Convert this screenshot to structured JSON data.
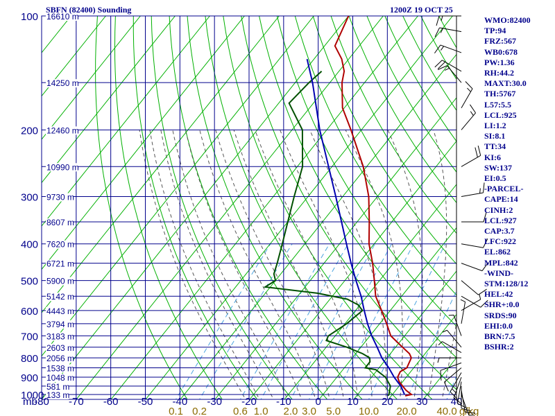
{
  "header": {
    "title": "SBFN (82400) Sounding",
    "timestamp": "1200Z 19 OCT 25"
  },
  "indices": [
    "WMO:82400",
    "TP:94",
    "FRZ:567",
    "WB0:678",
    "PW:1.36",
    "RH:44.2",
    "MAXT:30.0",
    "TH:5767",
    "L57:5.5",
    "LCL:925",
    "LI:1.2",
    "SI:8.1",
    "TT:34",
    "KI:6",
    "SW:137",
    "EI:0.5",
    "-PARCEL-",
    "CAPE:14",
    "CINH:2",
    "LCL:927",
    "CAP:3.7",
    "LFC:922",
    "EL:862",
    "MPL:842",
    "-WIND-",
    "STM:128/12",
    "HEL:42",
    "SHR+:0.0",
    "SRDS:90",
    "EHI:0.0",
    "BRN:7.5",
    "BSHR:2"
  ],
  "colors": {
    "grid": "#00008b",
    "dry_adiabat": "#00b000",
    "moist_adiabat": "#555555",
    "mixing_ratio": "#4aa3df",
    "temperature": "#b00000",
    "dewpoint": "#005000",
    "parcel": "#0000b0",
    "wind": "#000000",
    "mixing_label": "#8b6b00"
  },
  "chart_data": {
    "type": "line",
    "title": "SBFN (82400) Sounding",
    "xlabel": "",
    "ylabel": "mb",
    "pressure_levels": [
      100,
      200,
      300,
      400,
      500,
      600,
      700,
      800,
      900,
      1000
    ],
    "pressure_ticks": [
      "100",
      "200",
      "300",
      "400",
      "500",
      "600",
      "700",
      "800",
      "900",
      "1000"
    ],
    "ylim": [
      100,
      1030
    ],
    "y_scale": "log",
    "temperature_ticks": [
      -80,
      -70,
      -60,
      -50,
      -40,
      -30,
      -20,
      -10,
      0,
      10,
      20,
      30,
      40
    ],
    "temperature_tick_labels": [
      "-80",
      "-70",
      "-60",
      "-50",
      "-40",
      "-30",
      "-20",
      "-10",
      "0",
      "10",
      "20",
      "30",
      "40"
    ],
    "mixing_ratio_labels": [
      "0.1",
      "0.2",
      "0.6",
      "1.0",
      "2.0",
      "3.0",
      "5.0",
      "10.0",
      "20.0",
      "40.0"
    ],
    "mixing_ratio_unit": "g/kg",
    "xlim": [
      -80,
      40
    ],
    "grid": true,
    "heights": [
      {
        "p": 100,
        "label": "16610 m"
      },
      {
        "p": 150,
        "label": "14250 m"
      },
      {
        "p": 200,
        "label": "12460 m"
      },
      {
        "p": 250,
        "label": "10990 m"
      },
      {
        "p": 300,
        "label": "9730 m"
      },
      {
        "p": 350,
        "label": "8607 m"
      },
      {
        "p": 400,
        "label": "7620 m"
      },
      {
        "p": 450,
        "label": "6721 m"
      },
      {
        "p": 500,
        "label": "5900 m"
      },
      {
        "p": 550,
        "label": "5142 m"
      },
      {
        "p": 600,
        "label": "4443 m"
      },
      {
        "p": 650,
        "label": "3794 m"
      },
      {
        "p": 700,
        "label": "3183 m"
      },
      {
        "p": 750,
        "label": "2603 m"
      },
      {
        "p": 800,
        "label": "2056 m"
      },
      {
        "p": 850,
        "label": "1538 m"
      },
      {
        "p": 900,
        "label": "1048 m"
      },
      {
        "p": 950,
        "label": "581 m"
      },
      {
        "p": 1000,
        "label": "133 m"
      }
    ],
    "series": [
      {
        "name": "Temperature",
        "points": [
          [
            1008,
            24.0
          ],
          [
            1000,
            25.5
          ],
          [
            975,
            23.0
          ],
          [
            950,
            21.0
          ],
          [
            925,
            19.0
          ],
          [
            900,
            17.5
          ],
          [
            870,
            17.0
          ],
          [
            850,
            18.0
          ],
          [
            800,
            17.0
          ],
          [
            780,
            15.5
          ],
          [
            750,
            12.0
          ],
          [
            700,
            6.0
          ],
          [
            650,
            2.0
          ],
          [
            600,
            -2.5
          ],
          [
            550,
            -7.5
          ],
          [
            500,
            -11.5
          ],
          [
            450,
            -16.0
          ],
          [
            400,
            -21.5
          ],
          [
            350,
            -26.5
          ],
          [
            300,
            -32.5
          ],
          [
            250,
            -41.0
          ],
          [
            200,
            -53.0
          ],
          [
            175,
            -60.5
          ],
          [
            150,
            -66.5
          ],
          [
            140,
            -68.5
          ],
          [
            130,
            -72.0
          ],
          [
            120,
            -77.0
          ],
          [
            100,
            -80.0
          ]
        ]
      },
      {
        "name": "Dewpoint",
        "points": [
          [
            1008,
            19.0
          ],
          [
            1000,
            19.0
          ],
          [
            950,
            17.5
          ],
          [
            900,
            14.0
          ],
          [
            860,
            9.5
          ],
          [
            850,
            6.0
          ],
          [
            820,
            6.0
          ],
          [
            800,
            5.0
          ],
          [
            780,
            2.0
          ],
          [
            750,
            -4.0
          ],
          [
            720,
            -11.5
          ],
          [
            700,
            -12.0
          ],
          [
            650,
            -9.5
          ],
          [
            600,
            -8.0
          ],
          [
            580,
            -10.5
          ],
          [
            560,
            -15.0
          ],
          [
            540,
            -25.0
          ],
          [
            520,
            -41.5
          ],
          [
            500,
            -40.0
          ],
          [
            480,
            -42.0
          ],
          [
            450,
            -43.5
          ],
          [
            400,
            -46.5
          ],
          [
            350,
            -50.0
          ],
          [
            300,
            -54.0
          ],
          [
            250,
            -58.5
          ],
          [
            200,
            -67.0
          ],
          [
            170,
            -77.0
          ],
          [
            150,
            -76.0
          ],
          [
            140,
            -75.0
          ]
        ]
      },
      {
        "name": "Parcel",
        "points": [
          [
            1000,
            23.5
          ],
          [
            950,
            20.5
          ],
          [
            925,
            18.5
          ],
          [
            900,
            16.5
          ],
          [
            850,
            12.8
          ],
          [
            800,
            8.5
          ],
          [
            750,
            4.7
          ],
          [
            700,
            0.5
          ],
          [
            650,
            -3.5
          ],
          [
            600,
            -7.5
          ],
          [
            550,
            -11.7
          ],
          [
            500,
            -16.8
          ],
          [
            450,
            -22.2
          ],
          [
            400,
            -28.0
          ],
          [
            350,
            -34.5
          ],
          [
            300,
            -42.0
          ],
          [
            250,
            -51.0
          ],
          [
            200,
            -62.0
          ],
          [
            150,
            -75.0
          ],
          [
            130,
            -82.0
          ]
        ]
      }
    ],
    "winds": [
      {
        "p": 1000,
        "dir": 160,
        "spd": 5
      },
      {
        "p": 975,
        "dir": 170,
        "spd": 10
      },
      {
        "p": 950,
        "dir": 180,
        "spd": 10
      },
      {
        "p": 925,
        "dir": 190,
        "spd": 10
      },
      {
        "p": 900,
        "dir": 200,
        "spd": 10
      },
      {
        "p": 875,
        "dir": 210,
        "spd": 15
      },
      {
        "p": 850,
        "dir": 230,
        "spd": 10
      },
      {
        "p": 825,
        "dir": 250,
        "spd": 10
      },
      {
        "p": 800,
        "dir": 270,
        "spd": 5
      },
      {
        "p": 775,
        "dir": 300,
        "spd": 5
      },
      {
        "p": 750,
        "dir": 320,
        "spd": 5
      },
      {
        "p": 700,
        "dir": 340,
        "spd": 5
      },
      {
        "p": 650,
        "dir": 10,
        "spd": 5
      },
      {
        "p": 600,
        "dir": 60,
        "spd": 5
      },
      {
        "p": 550,
        "dir": 120,
        "spd": 10
      },
      {
        "p": 500,
        "dir": 130,
        "spd": 10
      },
      {
        "p": 450,
        "dir": 110,
        "spd": 10
      },
      {
        "p": 400,
        "dir": 100,
        "spd": 10
      },
      {
        "p": 350,
        "dir": 90,
        "spd": 10
      },
      {
        "p": 300,
        "dir": 80,
        "spd": 15
      },
      {
        "p": 250,
        "dir": 60,
        "spd": 20
      },
      {
        "p": 200,
        "dir": 40,
        "spd": 15
      },
      {
        "p": 175,
        "dir": 30,
        "spd": 15
      },
      {
        "p": 150,
        "dir": 320,
        "spd": 15
      },
      {
        "p": 140,
        "dir": 300,
        "spd": 20
      },
      {
        "p": 125,
        "dir": 290,
        "spd": 15
      },
      {
        "p": 110,
        "dir": 280,
        "spd": 15
      },
      {
        "p": 100,
        "dir": 270,
        "spd": 15
      }
    ]
  }
}
